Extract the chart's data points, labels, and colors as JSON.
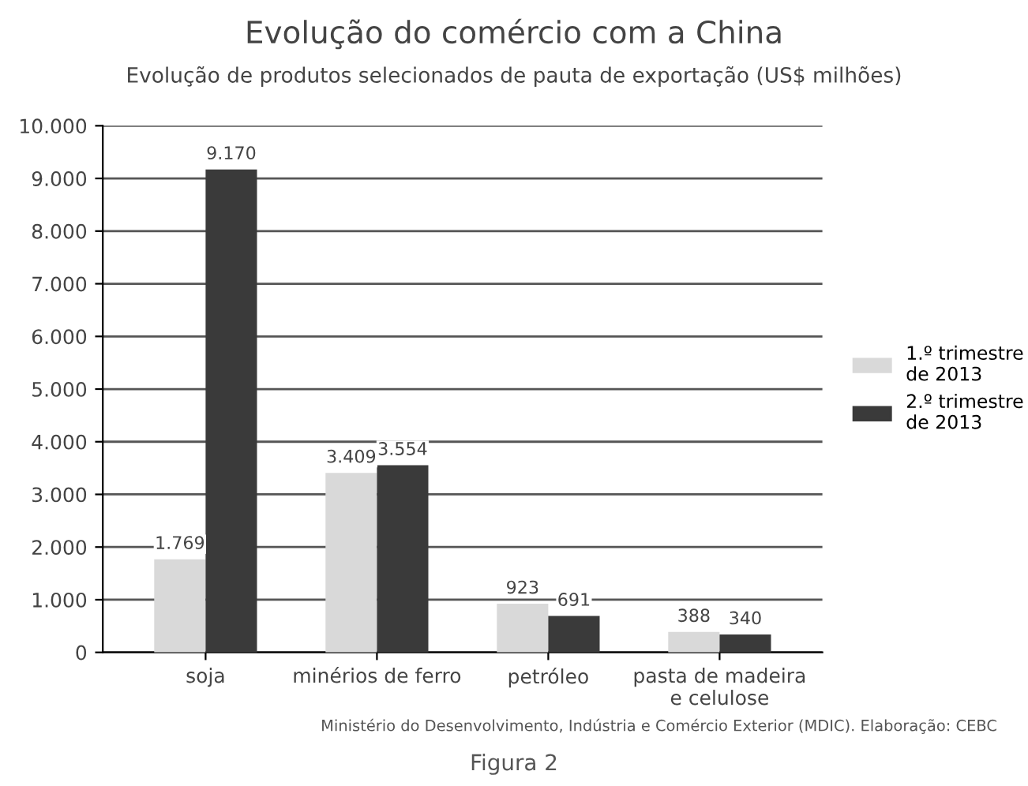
{
  "chart_data": {
    "type": "bar",
    "title": "Evolução do comércio com a China",
    "subtitle": "Evolução de produtos selecionados de pauta de exportação (US$ milhões)",
    "categories": [
      "soja",
      "minérios de ferro",
      "petróleo",
      "pasta de madeira\ne celulose"
    ],
    "series": [
      {
        "name": "1.º trimestre\nde 2013",
        "color": "#d9d9d9",
        "values": [
          1769,
          3409,
          923,
          388
        ],
        "value_labels": [
          "1.769",
          "3.409",
          "923",
          "388"
        ]
      },
      {
        "name": "2.º trimestre\nde 2013",
        "color": "#3a3a3a",
        "values": [
          9170,
          3554,
          691,
          340
        ],
        "value_labels": [
          "9.170",
          "3.554",
          "691",
          "340"
        ]
      }
    ],
    "ylim": [
      0,
      10000
    ],
    "yticks": [
      0,
      {
        "value": 1000,
        "label": "1.000"
      },
      {
        "value": 2000,
        "label": "2.000"
      },
      {
        "value": 3000,
        "label": "3.000"
      },
      {
        "value": 4000,
        "label": "4.000"
      },
      {
        "value": 5000,
        "label": "5.000"
      },
      {
        "value": 6000,
        "label": "6.000"
      },
      {
        "value": 7000,
        "label": "7.000"
      },
      {
        "value": 8000,
        "label": "8.000"
      },
      {
        "value": 9000,
        "label": "9.000"
      },
      {
        "value": 10000,
        "label": "10.000"
      }
    ],
    "grid": "y",
    "legend": "right",
    "annotations": [
      "Ministério do Desenvolvimento, Indústria e Comércio Exterior (MDIC). Elaboração: CEBC",
      "Figura 2"
    ]
  }
}
